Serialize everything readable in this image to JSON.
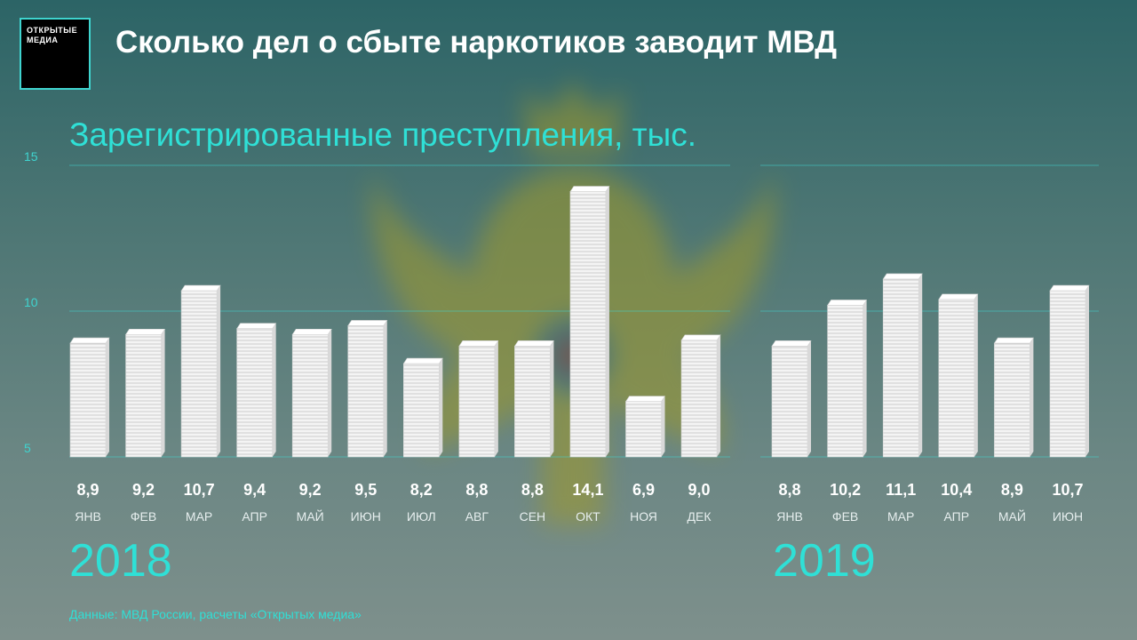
{
  "logo": {
    "line1": "ОТКРЫТЫЕ",
    "line2": "МЕДИА"
  },
  "header": {
    "title": "Сколько дел о сбыте наркотиков заводит МВД"
  },
  "source": "Данные: МВД России, расчеты «Открытых медиа»",
  "colors": {
    "accent": "#2fe0d6",
    "gridline": "#3fd4cf",
    "bar": "#f2f2f2"
  },
  "chart_data": {
    "type": "bar",
    "title": "Зарегистрированные преступления, тыс.",
    "ylim": [
      5,
      15
    ],
    "yticks": [
      "5",
      "10",
      "15"
    ],
    "grid": true,
    "groups": [
      {
        "year": "2018",
        "categories": [
          "ЯНВ",
          "ФЕВ",
          "МАР",
          "АПР",
          "МАЙ",
          "ИЮН",
          "ИЮЛ",
          "АВГ",
          "СЕН",
          "ОКТ",
          "НОЯ",
          "ДЕК"
        ],
        "values": [
          8.9,
          9.2,
          10.7,
          9.4,
          9.2,
          9.5,
          8.2,
          8.8,
          8.8,
          14.1,
          6.9,
          9.0
        ],
        "labels": [
          "8,9",
          "9,2",
          "10,7",
          "9,4",
          "9,2",
          "9,5",
          "8,2",
          "8,8",
          "8,8",
          "14,1",
          "6,9",
          "9,0"
        ]
      },
      {
        "year": "2019",
        "categories": [
          "ЯНВ",
          "ФЕВ",
          "МАР",
          "АПР",
          "МАЙ",
          "ИЮН"
        ],
        "values": [
          8.8,
          10.2,
          11.1,
          10.4,
          8.9,
          10.7
        ],
        "labels": [
          "8,8",
          "10,2",
          "11,1",
          "10,4",
          "8,9",
          "10,7"
        ]
      }
    ]
  }
}
